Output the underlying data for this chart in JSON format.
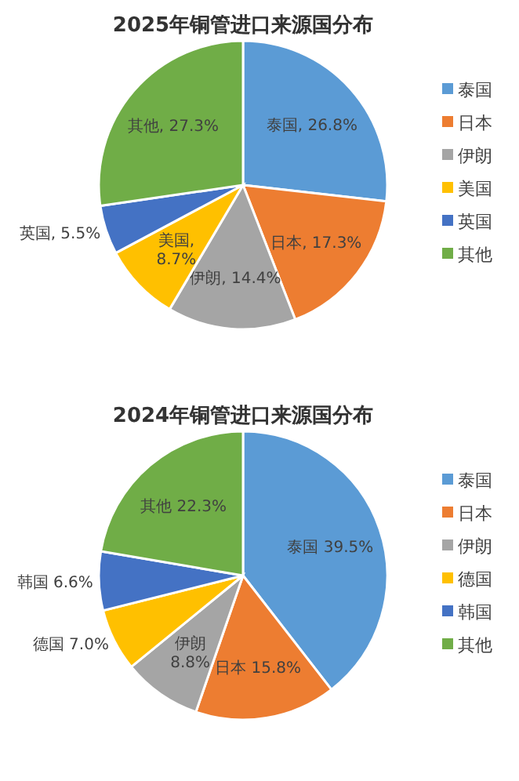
{
  "chart_data": [
    {
      "type": "pie",
      "title": "2025年铜管进口来源国分布",
      "categories": [
        "泰国",
        "日本",
        "伊朗",
        "美国",
        "英国",
        "其他"
      ],
      "values": [
        26.8,
        17.3,
        14.4,
        8.7,
        5.5,
        27.3
      ],
      "colors": [
        "#5b9bd5",
        "#ed7d31",
        "#a5a5a5",
        "#ffc000",
        "#4472c4",
        "#70ad47"
      ],
      "value_labels": [
        "泰国, 26.8%",
        "日本, 17.3%",
        "伊朗, 14.4%",
        "美国, 8.7%",
        "英国, 5.5%",
        "其他, 27.3%"
      ],
      "legend": "right"
    },
    {
      "type": "pie",
      "title": "2024年铜管进口来源国分布",
      "categories": [
        "泰国",
        "日本",
        "伊朗",
        "德国",
        "韩国",
        "其他"
      ],
      "values": [
        39.5,
        15.8,
        8.8,
        7.0,
        6.6,
        22.3
      ],
      "colors": [
        "#5b9bd5",
        "#ed7d31",
        "#a5a5a5",
        "#ffc000",
        "#4472c4",
        "#70ad47"
      ],
      "value_labels": [
        "泰国 39.5%",
        "日本 15.8%",
        "伊朗 8.8%",
        "德国 7.0%",
        "韩国 6.6%",
        "其他 22.3%"
      ],
      "legend": "right"
    }
  ]
}
